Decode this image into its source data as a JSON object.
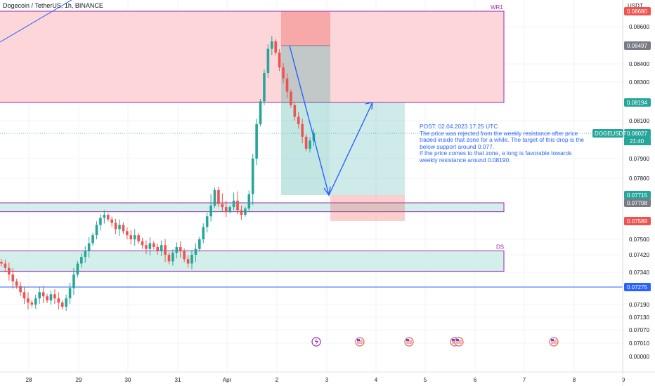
{
  "chart_title": "Dogecoin / TetherUS, 1h, BINANCE",
  "currency": "USDT",
  "annotation_text": "POST: 02.04.2023 17:25 UTC\nThe price was rejected from the weekly resistance after price traded inside that zone for a while. The target of this drop is the below support around 0.077.\nIf the price comes to that zone, a long is favorable towards weekly resistance around 0.08190.",
  "symbol_tag": "DOGEUSDT",
  "countdown": "21:40",
  "zone_labels": {
    "weekly_resistance": "WR1",
    "demand": "DS"
  },
  "colors": {
    "bull": "#26a69a",
    "bear": "#ef5350",
    "arrow": "#2962ff",
    "resistance_fill": "#fcd6d8",
    "support_fill": "#d3efe9",
    "zone_border": "#9c27b0"
  },
  "events": [
    {
      "type": "lightning-icon",
      "date": "Apr 2"
    },
    {
      "type": "us-flag-icon",
      "date": "Apr 3"
    },
    {
      "type": "us-flag-icon",
      "date": "Apr 4"
    },
    {
      "type": "us-flag-icon",
      "date": "Apr 5"
    },
    {
      "type": "us-flag-icon",
      "date": "Apr 5"
    },
    {
      "type": "us-flag-icon",
      "date": "Apr 7"
    }
  ],
  "chart_data": {
    "type": "candlestick",
    "x_ticks": [
      "28",
      "29",
      "30",
      "31",
      "Apr",
      "2",
      "3",
      "4",
      "5",
      "6",
      "7",
      "8",
      "9"
    ],
    "y_ticks": [
      "0.08600",
      "0.08400",
      "0.08300",
      "0.08100",
      "0.07900",
      "0.07800",
      "0.07500",
      "0.07420",
      "0.07340",
      "0.07190",
      "0.07130",
      "0.07070",
      "0.07010",
      "0.00000"
    ],
    "price_tags": [
      {
        "value": "0.08680",
        "color": "#ef5350"
      },
      {
        "value": "0.08497",
        "color": "#787b86"
      },
      {
        "value": "0.08194",
        "color": "#26a69a"
      },
      {
        "value": "0.08027",
        "color": "#26a69a"
      },
      {
        "value": "0.07715",
        "color": "#26a69a"
      },
      {
        "value": "0.07708",
        "color": "#787b86"
      },
      {
        "value": "0.07589",
        "color": "#ef5350"
      },
      {
        "value": "0.07275",
        "color": "#2962ff"
      }
    ],
    "horizontal_line": 0.07275,
    "zones": [
      {
        "name": "weekly-resistance",
        "label": "WR1",
        "from": 0.08194,
        "to": 0.0868
      },
      {
        "name": "support-upper",
        "from": 0.0765,
        "to": 0.07708
      },
      {
        "name": "support-lower",
        "label": "DS",
        "from": 0.07345,
        "to": 0.0744
      }
    ],
    "position": {
      "entry": 0.08497,
      "stop": 0.0868,
      "target": 0.07715,
      "extended_stop": 0.07589
    },
    "projection_path": [
      0.08497,
      0.07715,
      0.08194
    ],
    "price_action": [
      0.0738,
      0.0736,
      0.0733,
      0.073,
      0.0728,
      0.0725,
      0.0722,
      0.072,
      0.0719,
      0.0722,
      0.0725,
      0.0723,
      0.0721,
      0.0724,
      0.0722,
      0.072,
      0.0718,
      0.0722,
      0.0727,
      0.0733,
      0.0738,
      0.0741,
      0.0744,
      0.0748,
      0.0752,
      0.0757,
      0.0761,
      0.0763,
      0.076,
      0.0758,
      0.0755,
      0.0757,
      0.0754,
      0.0752,
      0.075,
      0.0752,
      0.0749,
      0.0747,
      0.0745,
      0.0748,
      0.0746,
      0.0744,
      0.0747,
      0.0742,
      0.0739,
      0.0743,
      0.0746,
      0.0744,
      0.074,
      0.0738,
      0.0742,
      0.0745,
      0.075,
      0.0756,
      0.0762,
      0.0769,
      0.0774,
      0.077,
      0.0768,
      0.0765,
      0.0768,
      0.0771,
      0.0766,
      0.0763,
      0.0767,
      0.0772,
      0.079,
      0.0808,
      0.082,
      0.0835,
      0.0848,
      0.0852,
      0.0846,
      0.0838,
      0.0832,
      0.0825,
      0.0818,
      0.0812,
      0.0808,
      0.0801,
      0.0795,
      0.0799,
      0.0803
    ]
  }
}
